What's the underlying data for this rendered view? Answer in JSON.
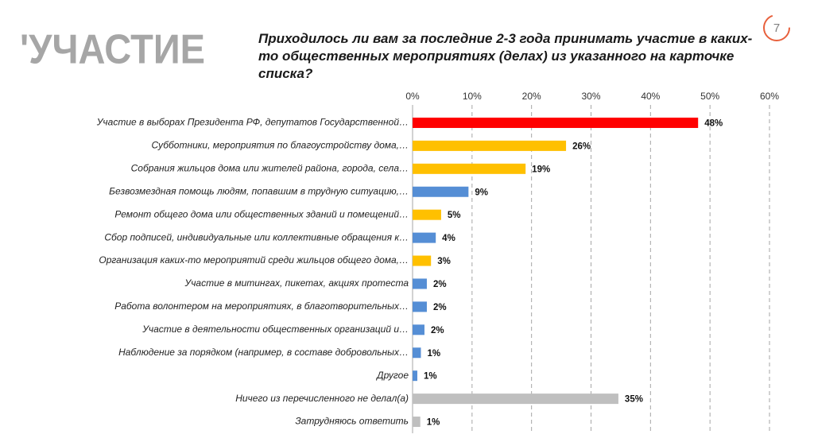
{
  "chart_data": {
    "type": "bar",
    "orientation": "horizontal",
    "section": "'УЧАСТИЕ",
    "page_number": "7",
    "title": "Приходилось ли вам за последние 2-3 года принимать участие в каких-то общественных мероприятиях (делах) из указанного на карточке списка?",
    "categories": [
      "Участие в выборах Президента РФ, депутатов Государственной…",
      "Субботники, мероприятия по благоустройству дома,…",
      "Собрания жильцов дома или жителей района, города, села…",
      "Безвозмездная помощь людям, попавшим в трудную ситуацию,…",
      "Ремонт общего дома или общественных зданий и помещений…",
      "Сбор подписей, индивидуальные или коллективные обращения к…",
      "Организация каких-то мероприятий среди жильцов общего дома,…",
      "Участие в митингах, пикетах, акциях протеста",
      "Работа волонтером на мероприятиях, в благотворительных…",
      "Участие в деятельности общественных организаций и…",
      "Наблюдение за порядком (например, в составе добровольных…",
      "Другое",
      "Ничего из перечисленного не делал(а)",
      "Затрудняюсь ответить"
    ],
    "values": [
      48,
      25.8,
      19,
      9.4,
      4.8,
      3.9,
      3.1,
      2.4,
      2.4,
      2,
      1.4,
      0.8,
      34.6,
      1.3
    ],
    "value_labels": [
      "48%",
      "26%",
      "19%",
      "9%",
      "5%",
      "4%",
      "3%",
      "2%",
      "2%",
      "2%",
      "1%",
      "1%",
      "35%",
      "1%"
    ],
    "colors": [
      "#ff0000",
      "#ffc000",
      "#ffc000",
      "#558ed5",
      "#ffc000",
      "#558ed5",
      "#ffc000",
      "#558ed5",
      "#558ed5",
      "#558ed5",
      "#558ed5",
      "#558ed5",
      "#bfbfbf",
      "#bfbfbf"
    ],
    "xlim": [
      0,
      60
    ],
    "xticks": [
      {
        "value": 0,
        "label": "0%"
      },
      {
        "value": 10,
        "label": "10%"
      },
      {
        "value": 20,
        "label": "20%"
      },
      {
        "value": 30,
        "label": "30%"
      },
      {
        "value": 40,
        "label": "40%"
      },
      {
        "value": 50,
        "label": "50%"
      },
      {
        "value": 60,
        "label": "60%"
      }
    ],
    "grid": true
  }
}
